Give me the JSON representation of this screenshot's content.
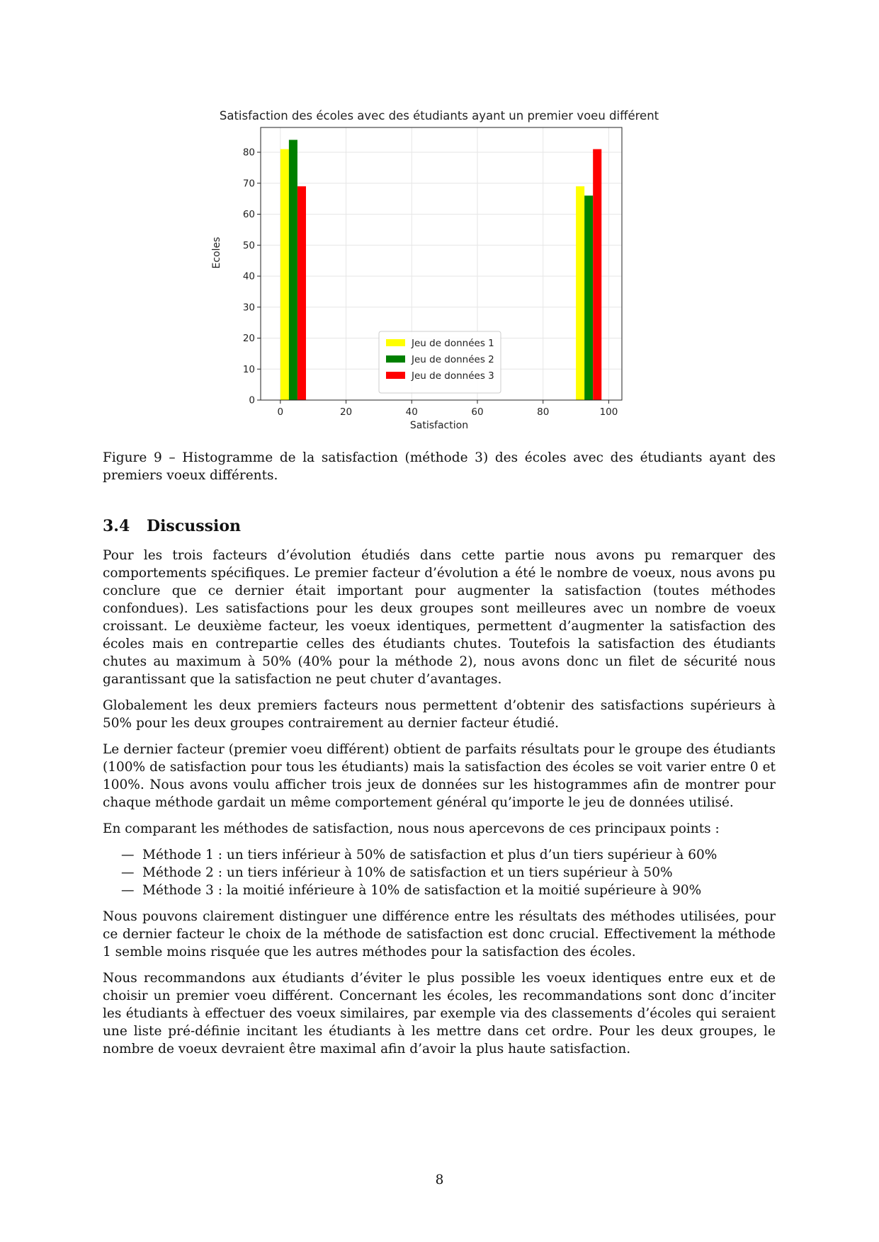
{
  "chart_data": {
    "type": "bar",
    "title": "Satisfaction des écoles avec des étudiants ayant un premier voeu différent",
    "xlabel": "Satisfaction",
    "ylabel": "Ecoles",
    "xlim": [
      -6,
      104
    ],
    "ylim": [
      0,
      88
    ],
    "x_ticks": [
      0,
      20,
      40,
      60,
      80,
      100
    ],
    "y_ticks": [
      0,
      10,
      20,
      30,
      40,
      50,
      60,
      70,
      80
    ],
    "grid": true,
    "legend_position": "lower-center",
    "bin_width": 2.6,
    "series": [
      {
        "name": "Jeu de données 1",
        "color": "#ffff00",
        "x": [
          1.3,
          91.3
        ],
        "values": [
          81,
          69
        ]
      },
      {
        "name": "Jeu de données 2",
        "color": "#008000",
        "x": [
          3.9,
          93.9
        ],
        "values": [
          84,
          66
        ]
      },
      {
        "name": "Jeu de données 3",
        "color": "#ff0000",
        "x": [
          6.5,
          96.5
        ],
        "values": [
          69,
          81
        ]
      }
    ]
  },
  "caption": "Figure 9 – Histogramme de la satisfaction (méthode 3) des écoles avec des étudiants ayant des premiers voeux différents.",
  "section": {
    "number": "3.4",
    "title": "Discussion"
  },
  "paragraphs": [
    "Pour les trois facteurs d’évolution étudiés dans cette partie nous avons pu remarquer des comportements spécifiques. Le premier facteur d’évolution a été le nombre de voeux, nous avons pu conclure que ce dernier était important pour augmenter la satisfaction (toutes méthodes confondues). Les satisfactions pour les deux groupes sont meilleures avec un nombre de voeux croissant. Le deuxième facteur, les voeux identiques, permettent d’augmenter la satisfaction des écoles mais en contrepartie celles des étudiants chutes. Toutefois la satisfaction des étudiants chutes au maximum à 50% (40% pour la méthode 2), nous avons donc un filet de sécurité nous garantissant que la satisfaction ne peut chuter d’avantages.",
    "Globalement les deux premiers facteurs nous permettent d’obtenir des satisfactions supérieurs à 50% pour les deux groupes contrairement au dernier facteur étudié.",
    "Le dernier facteur (premier voeu différent) obtient de parfaits résultats pour le groupe des étudiants (100% de satisfaction pour tous les étudiants) mais la satisfaction des écoles se voit varier entre 0 et 100%. Nous avons voulu afficher trois jeux de données sur les histogrammes afin de montrer pour chaque méthode gardait un même comportement général qu’importe le jeu de données utilisé.",
    "En comparant les méthodes de satisfaction, nous nous apercevons de ces principaux points :"
  ],
  "bullets": [
    "Méthode 1 : un tiers inférieur à 50% de satisfaction et plus d’un tiers supérieur à 60%",
    "Méthode 2 : un tiers inférieur à 10% de satisfaction et un tiers supérieur à 50%",
    "Méthode 3 : la moitié inférieure à 10% de satisfaction et la moitié supérieure à 90%"
  ],
  "bullet_marker": "—",
  "paragraphs_after": [
    "Nous pouvons clairement distinguer une différence entre les résultats des méthodes utilisées, pour ce dernier facteur le choix de la méthode de satisfaction est donc crucial. Effectivement la méthode 1 semble moins risquée que les autres méthodes pour la satisfaction des écoles.",
    "Nous recommandons aux étudiants d’éviter le plus possible les voeux identiques entre eux et de choisir un premier voeu différent. Concernant les écoles, les recommandations sont donc d’inciter les étudiants à effectuer des voeux similaires, par exemple via des classements d’écoles qui seraient une liste pré-définie incitant les étudiants à les mettre dans cet ordre. Pour les deux groupes, le nombre de voeux devraient être maximal afin d’avoir la plus haute satisfaction."
  ],
  "page_number": "8"
}
